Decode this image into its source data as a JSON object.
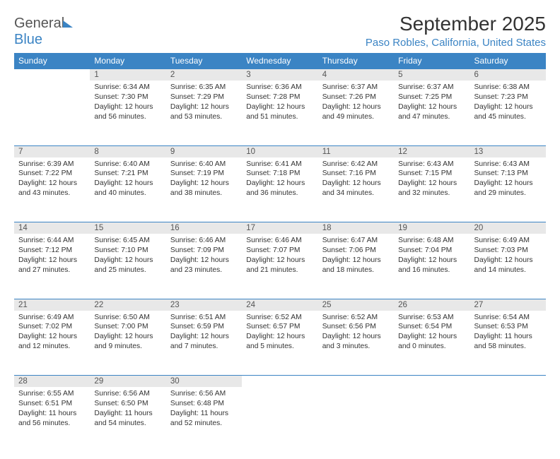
{
  "logo": {
    "general": "General",
    "blue": "Blue"
  },
  "title": "September 2025",
  "subtitle": "Paso Robles, California, United States",
  "day_headers": [
    "Sunday",
    "Monday",
    "Tuesday",
    "Wednesday",
    "Thursday",
    "Friday",
    "Saturday"
  ],
  "colors": {
    "header_bg": "#3b84c4",
    "header_text": "#ffffff",
    "daynum_bg": "#e8e8e8",
    "cell_border": "#3b84c4",
    "text": "#333333",
    "subtitle": "#3b84c4"
  },
  "weeks": [
    {
      "nums": [
        "",
        "1",
        "2",
        "3",
        "4",
        "5",
        "6"
      ],
      "cells": [
        null,
        {
          "sunrise": "Sunrise: 6:34 AM",
          "sunset": "Sunset: 7:30 PM",
          "day1": "Daylight: 12 hours",
          "day2": "and 56 minutes."
        },
        {
          "sunrise": "Sunrise: 6:35 AM",
          "sunset": "Sunset: 7:29 PM",
          "day1": "Daylight: 12 hours",
          "day2": "and 53 minutes."
        },
        {
          "sunrise": "Sunrise: 6:36 AM",
          "sunset": "Sunset: 7:28 PM",
          "day1": "Daylight: 12 hours",
          "day2": "and 51 minutes."
        },
        {
          "sunrise": "Sunrise: 6:37 AM",
          "sunset": "Sunset: 7:26 PM",
          "day1": "Daylight: 12 hours",
          "day2": "and 49 minutes."
        },
        {
          "sunrise": "Sunrise: 6:37 AM",
          "sunset": "Sunset: 7:25 PM",
          "day1": "Daylight: 12 hours",
          "day2": "and 47 minutes."
        },
        {
          "sunrise": "Sunrise: 6:38 AM",
          "sunset": "Sunset: 7:23 PM",
          "day1": "Daylight: 12 hours",
          "day2": "and 45 minutes."
        }
      ]
    },
    {
      "nums": [
        "7",
        "8",
        "9",
        "10",
        "11",
        "12",
        "13"
      ],
      "cells": [
        {
          "sunrise": "Sunrise: 6:39 AM",
          "sunset": "Sunset: 7:22 PM",
          "day1": "Daylight: 12 hours",
          "day2": "and 43 minutes."
        },
        {
          "sunrise": "Sunrise: 6:40 AM",
          "sunset": "Sunset: 7:21 PM",
          "day1": "Daylight: 12 hours",
          "day2": "and 40 minutes."
        },
        {
          "sunrise": "Sunrise: 6:40 AM",
          "sunset": "Sunset: 7:19 PM",
          "day1": "Daylight: 12 hours",
          "day2": "and 38 minutes."
        },
        {
          "sunrise": "Sunrise: 6:41 AM",
          "sunset": "Sunset: 7:18 PM",
          "day1": "Daylight: 12 hours",
          "day2": "and 36 minutes."
        },
        {
          "sunrise": "Sunrise: 6:42 AM",
          "sunset": "Sunset: 7:16 PM",
          "day1": "Daylight: 12 hours",
          "day2": "and 34 minutes."
        },
        {
          "sunrise": "Sunrise: 6:43 AM",
          "sunset": "Sunset: 7:15 PM",
          "day1": "Daylight: 12 hours",
          "day2": "and 32 minutes."
        },
        {
          "sunrise": "Sunrise: 6:43 AM",
          "sunset": "Sunset: 7:13 PM",
          "day1": "Daylight: 12 hours",
          "day2": "and 29 minutes."
        }
      ]
    },
    {
      "nums": [
        "14",
        "15",
        "16",
        "17",
        "18",
        "19",
        "20"
      ],
      "cells": [
        {
          "sunrise": "Sunrise: 6:44 AM",
          "sunset": "Sunset: 7:12 PM",
          "day1": "Daylight: 12 hours",
          "day2": "and 27 minutes."
        },
        {
          "sunrise": "Sunrise: 6:45 AM",
          "sunset": "Sunset: 7:10 PM",
          "day1": "Daylight: 12 hours",
          "day2": "and 25 minutes."
        },
        {
          "sunrise": "Sunrise: 6:46 AM",
          "sunset": "Sunset: 7:09 PM",
          "day1": "Daylight: 12 hours",
          "day2": "and 23 minutes."
        },
        {
          "sunrise": "Sunrise: 6:46 AM",
          "sunset": "Sunset: 7:07 PM",
          "day1": "Daylight: 12 hours",
          "day2": "and 21 minutes."
        },
        {
          "sunrise": "Sunrise: 6:47 AM",
          "sunset": "Sunset: 7:06 PM",
          "day1": "Daylight: 12 hours",
          "day2": "and 18 minutes."
        },
        {
          "sunrise": "Sunrise: 6:48 AM",
          "sunset": "Sunset: 7:04 PM",
          "day1": "Daylight: 12 hours",
          "day2": "and 16 minutes."
        },
        {
          "sunrise": "Sunrise: 6:49 AM",
          "sunset": "Sunset: 7:03 PM",
          "day1": "Daylight: 12 hours",
          "day2": "and 14 minutes."
        }
      ]
    },
    {
      "nums": [
        "21",
        "22",
        "23",
        "24",
        "25",
        "26",
        "27"
      ],
      "cells": [
        {
          "sunrise": "Sunrise: 6:49 AM",
          "sunset": "Sunset: 7:02 PM",
          "day1": "Daylight: 12 hours",
          "day2": "and 12 minutes."
        },
        {
          "sunrise": "Sunrise: 6:50 AM",
          "sunset": "Sunset: 7:00 PM",
          "day1": "Daylight: 12 hours",
          "day2": "and 9 minutes."
        },
        {
          "sunrise": "Sunrise: 6:51 AM",
          "sunset": "Sunset: 6:59 PM",
          "day1": "Daylight: 12 hours",
          "day2": "and 7 minutes."
        },
        {
          "sunrise": "Sunrise: 6:52 AM",
          "sunset": "Sunset: 6:57 PM",
          "day1": "Daylight: 12 hours",
          "day2": "and 5 minutes."
        },
        {
          "sunrise": "Sunrise: 6:52 AM",
          "sunset": "Sunset: 6:56 PM",
          "day1": "Daylight: 12 hours",
          "day2": "and 3 minutes."
        },
        {
          "sunrise": "Sunrise: 6:53 AM",
          "sunset": "Sunset: 6:54 PM",
          "day1": "Daylight: 12 hours",
          "day2": "and 0 minutes."
        },
        {
          "sunrise": "Sunrise: 6:54 AM",
          "sunset": "Sunset: 6:53 PM",
          "day1": "Daylight: 11 hours",
          "day2": "and 58 minutes."
        }
      ]
    },
    {
      "nums": [
        "28",
        "29",
        "30",
        "",
        "",
        "",
        ""
      ],
      "cells": [
        {
          "sunrise": "Sunrise: 6:55 AM",
          "sunset": "Sunset: 6:51 PM",
          "day1": "Daylight: 11 hours",
          "day2": "and 56 minutes."
        },
        {
          "sunrise": "Sunrise: 6:56 AM",
          "sunset": "Sunset: 6:50 PM",
          "day1": "Daylight: 11 hours",
          "day2": "and 54 minutes."
        },
        {
          "sunrise": "Sunrise: 6:56 AM",
          "sunset": "Sunset: 6:48 PM",
          "day1": "Daylight: 11 hours",
          "day2": "and 52 minutes."
        },
        null,
        null,
        null,
        null
      ]
    }
  ]
}
